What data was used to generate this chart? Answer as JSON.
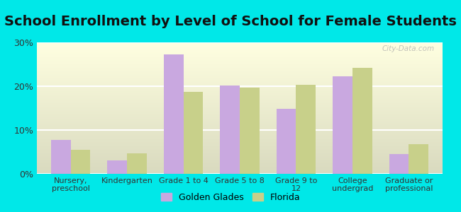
{
  "title": "School Enrollment by Level of School for Female Students",
  "categories": [
    "Nursery,\npreschool",
    "Kindergarten",
    "Grade 1 to 4",
    "Grade 5 to 8",
    "Grade 9 to\n12",
    "College\nundergrad",
    "Graduate or\nprofessional"
  ],
  "golden_glades": [
    7.8,
    3.0,
    27.2,
    20.2,
    14.9,
    22.2,
    4.5
  ],
  "florida": [
    5.5,
    4.7,
    18.7,
    19.7,
    20.3,
    24.2,
    6.7
  ],
  "golden_glades_color": "#c9a8e0",
  "florida_color": "#c8d08a",
  "background_color": "#00e8e8",
  "ylim": [
    0,
    30
  ],
  "yticks": [
    0,
    10,
    20,
    30
  ],
  "ytick_labels": [
    "0%",
    "10%",
    "20%",
    "30%"
  ],
  "legend_labels": [
    "Golden Glades",
    "Florida"
  ],
  "bar_width": 0.35,
  "title_fontsize": 14,
  "watermark": "City-Data.com"
}
